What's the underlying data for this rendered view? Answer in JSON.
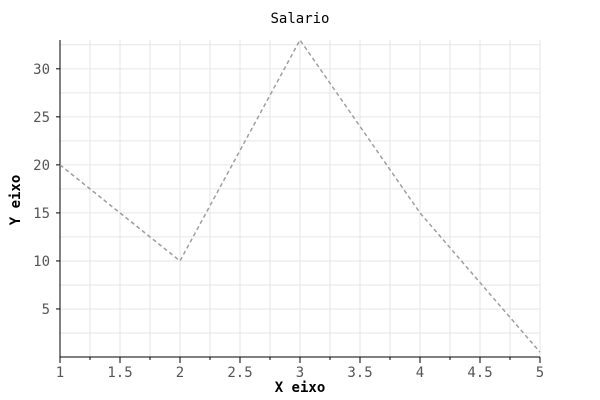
{
  "chart_data": {
    "type": "line",
    "title": "Salario",
    "xlabel": "X eixo",
    "ylabel": "Y eixo",
    "x": [
      1,
      2,
      3,
      4,
      5
    ],
    "series": [
      {
        "values": [
          20,
          10,
          33,
          15,
          0.5
        ]
      }
    ],
    "xlim": [
      1,
      5
    ],
    "ylim": [
      0,
      33
    ],
    "xticks": [
      "1",
      "1.5",
      "2",
      "2.5",
      "3",
      "3.5",
      "4",
      "4.5",
      "5"
    ],
    "yticks": [
      "5",
      "10",
      "15",
      "20",
      "25",
      "30"
    ],
    "grid": true,
    "line_style": "dashed",
    "colors": {
      "line": "#9e9e9e",
      "grid": "#e6e6e6",
      "axis": "#000000"
    }
  }
}
